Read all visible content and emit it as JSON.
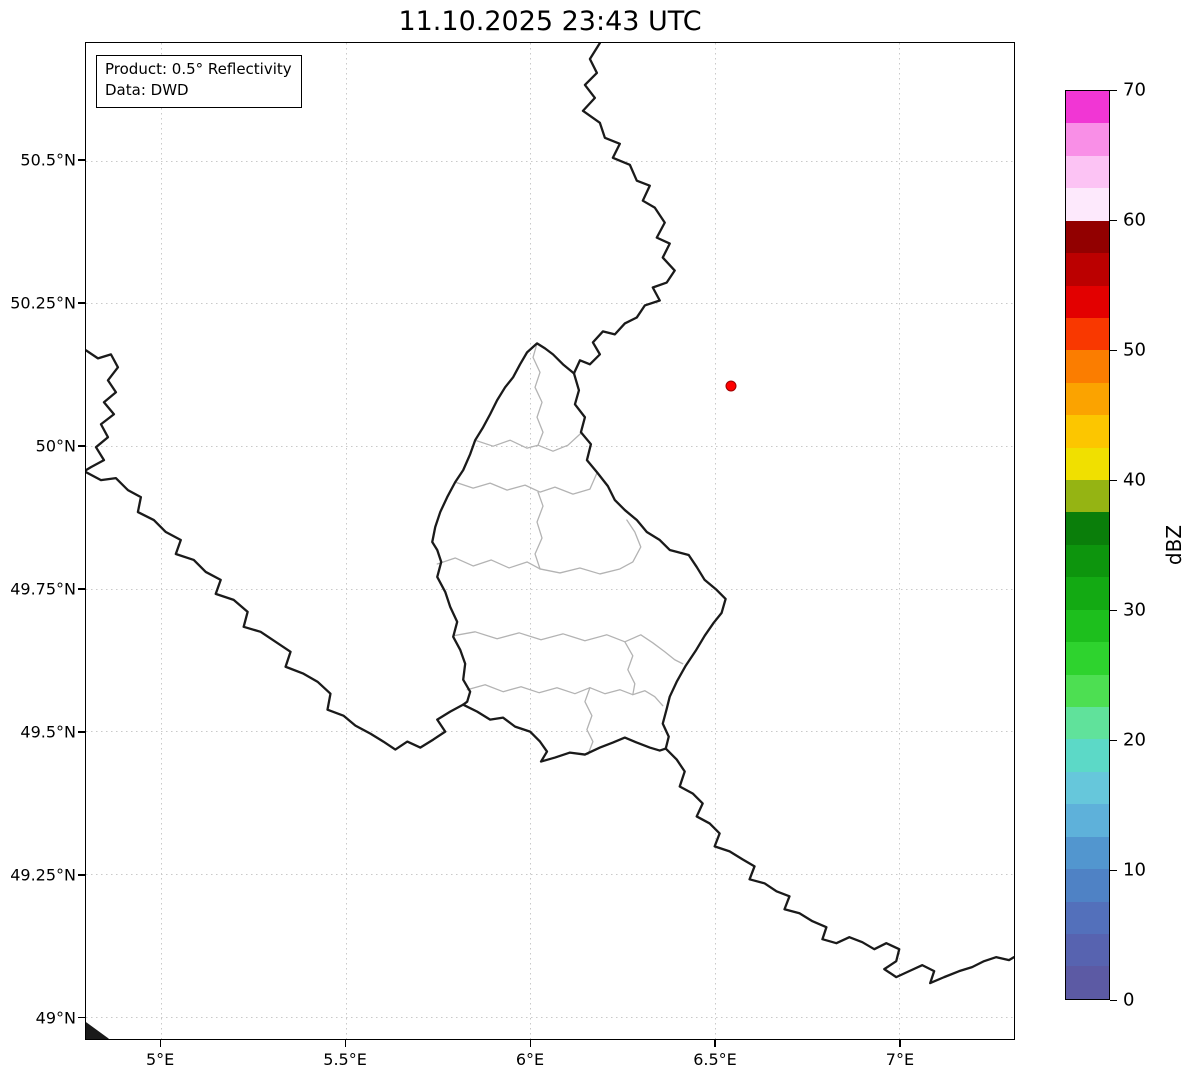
{
  "title": "11.10.2025 23:43 UTC",
  "info_box": {
    "product": "Product: 0.5° Reflectivity",
    "data_source": "Data: DWD"
  },
  "map": {
    "xlim": [
      4.797,
      7.311
    ],
    "ylim": [
      48.961,
      50.706
    ],
    "xticks": [
      {
        "value": 5.0,
        "label": "5°E"
      },
      {
        "value": 5.5,
        "label": "5.5°E"
      },
      {
        "value": 6.0,
        "label": "6°E"
      },
      {
        "value": 6.5,
        "label": "6.5°E"
      },
      {
        "value": 7.0,
        "label": "7°E"
      }
    ],
    "yticks": [
      {
        "value": 49.0,
        "label": "49°N"
      },
      {
        "value": 49.25,
        "label": "49.25°N"
      },
      {
        "value": 49.5,
        "label": "49.5°N"
      },
      {
        "value": 49.75,
        "label": "49.75°N"
      },
      {
        "value": 50.0,
        "label": "50°N"
      },
      {
        "value": 50.25,
        "label": "50.25°N"
      },
      {
        "value": 50.5,
        "label": "50.5°N"
      }
    ],
    "marker": {
      "lon": 6.543,
      "lat": 50.105,
      "color": "#ff0000",
      "edge_color": "#9a0000"
    },
    "border_color": "#1a1a1a",
    "canton_border_color": "#b3b3b3",
    "grid_color": "#c9c9c9"
  },
  "colorbar": {
    "label": "dBZ",
    "min": 0,
    "max": 70,
    "ticks": [
      0,
      10,
      20,
      30,
      40,
      50,
      60,
      70
    ],
    "segment_colors_bottom_to_top": [
      "#5c5aa4",
      "#5763b0",
      "#5370bb",
      "#4f82c5",
      "#5296cf",
      "#5eb1da",
      "#66c7db",
      "#5cd9c7",
      "#60e29b",
      "#4ddf52",
      "#2ed32e",
      "#1dbf1d",
      "#13aa13",
      "#0d950d",
      "#0a7e0a",
      "#95b413",
      "#f0e000",
      "#fcc600",
      "#fba300",
      "#fb7d00",
      "#f93800",
      "#e30000",
      "#bb0000",
      "#920000",
      "#fde9fc",
      "#fcc3f4",
      "#f98fe7",
      "#f136d4"
    ]
  }
}
